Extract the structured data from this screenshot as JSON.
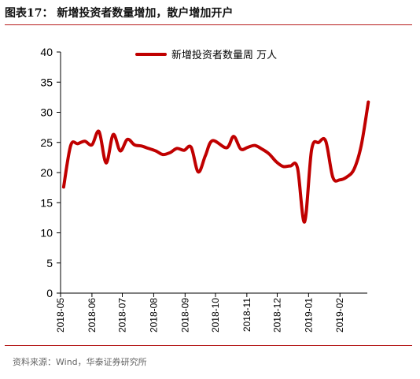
{
  "figure": {
    "title": "图表17：  新增投资者数量增加，散户增加开户",
    "source": "资料来源：Wind，华泰证券研究所"
  },
  "colors": {
    "series": "#c00000",
    "rule": "#b61c1c",
    "axis": "#000000"
  },
  "chart_data": {
    "type": "line",
    "title": "",
    "xlabel": "",
    "ylabel": "",
    "ylim": [
      0,
      40
    ],
    "yticks": [
      0,
      5,
      10,
      15,
      20,
      25,
      30,
      35,
      40
    ],
    "xlim": [
      "2018-05-01",
      "2019-02-28"
    ],
    "categories": [
      "2018-05",
      "2018-06",
      "2018-07",
      "2018-08",
      "2018-09",
      "2018-10",
      "2018-11",
      "2018-12",
      "2019-01",
      "2019-02"
    ],
    "grid": false,
    "legend": "top-center",
    "series": [
      {
        "name": "新增投资者数量周 万人",
        "x": [
          "2018-05-04",
          "2018-05-11",
          "2018-05-18",
          "2018-05-25",
          "2018-06-01",
          "2018-06-08",
          "2018-06-15",
          "2018-06-22",
          "2018-06-29",
          "2018-07-06",
          "2018-07-13",
          "2018-07-20",
          "2018-07-27",
          "2018-08-03",
          "2018-08-10",
          "2018-08-17",
          "2018-08-24",
          "2018-08-31",
          "2018-09-07",
          "2018-09-14",
          "2018-09-21",
          "2018-09-28",
          "2018-10-12",
          "2018-10-19",
          "2018-10-26",
          "2018-11-02",
          "2018-11-09",
          "2018-11-16",
          "2018-11-23",
          "2018-11-30",
          "2018-12-07",
          "2018-12-14",
          "2018-12-21",
          "2018-12-28",
          "2019-01-04",
          "2019-01-11",
          "2019-01-18",
          "2019-01-25",
          "2019-02-01",
          "2019-02-08",
          "2019-02-15",
          "2019-02-22",
          "2019-03-01"
        ],
        "values": [
          17.6,
          24.5,
          24.8,
          25.2,
          24.6,
          26.8,
          21.6,
          26.3,
          23.6,
          25.5,
          24.6,
          24.4,
          24.0,
          23.6,
          23.0,
          23.3,
          24.0,
          23.7,
          24.2,
          20.1,
          22.8,
          25.3,
          24.1,
          26.0,
          23.9,
          24.2,
          24.5,
          23.9,
          23.1,
          21.8,
          21.0,
          21.1,
          20.8,
          11.8,
          23.8,
          25.0,
          25.2,
          19.2,
          18.8,
          19.3,
          20.6,
          24.5,
          31.7
        ]
      }
    ]
  }
}
